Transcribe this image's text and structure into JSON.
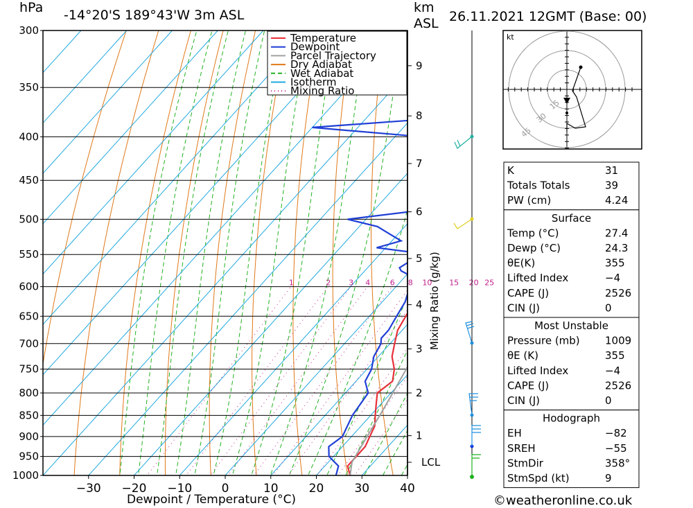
{
  "header": {
    "units_left": "hPa",
    "location": "-14°20'S  189°43'W  3m  ASL",
    "units_km": "km",
    "units_asl": "ASL",
    "datetime": "26.11.2021  12GMT  (Base: 00)"
  },
  "chart_data": {
    "type": "line",
    "subtype": "skew-T log-p sounding",
    "xlabel": "Dewpoint / Temperature (°C)",
    "ylabel": "hPa",
    "xlim": [
      -40,
      40
    ],
    "ylim": [
      1000,
      300
    ],
    "y_scale": "log",
    "x_ticks": [
      "−30",
      "−20",
      "−10",
      "0",
      "10",
      "20",
      "30",
      "40"
    ],
    "p_ticks": [
      1000,
      950,
      900,
      850,
      800,
      750,
      700,
      650,
      600,
      550,
      500,
      450,
      400,
      350,
      300
    ],
    "km_ticks": [
      {
        "p": 330,
        "label": "9"
      },
      {
        "p": 378,
        "label": "8"
      },
      {
        "p": 430,
        "label": "7"
      },
      {
        "p": 490,
        "label": "6"
      },
      {
        "p": 556,
        "label": "5"
      },
      {
        "p": 630,
        "label": "4"
      },
      {
        "p": 710,
        "label": "3"
      },
      {
        "p": 800,
        "label": "2"
      },
      {
        "p": 898,
        "label": "1"
      },
      {
        "p": 965,
        "label": "LCL"
      }
    ],
    "mixing_ratio_label": "Mixing Ratio (g/kg)",
    "mixing_ratio_values": [
      "1",
      "2",
      "3",
      "4",
      "6",
      "8",
      "10",
      "15",
      "20",
      "25"
    ],
    "legend": [
      "Temperature",
      "Dewpoint",
      "Parcel Trajectory",
      "Dry Adiabat",
      "Wet Adiabat",
      "Isotherm",
      "Mixing Ratio"
    ],
    "legend_position": "top-right",
    "colors": {
      "temperature": "#e8303a",
      "dewpoint": "#1f3fd6",
      "parcel": "#a0a0a0",
      "dry_adiabat": "#e07818",
      "wet_adiabat": "#20b020",
      "isotherm": "#20a8e0",
      "mixing_ratio": "#c0208c"
    },
    "series": [
      {
        "name": "Temperature",
        "points": [
          [
            1000,
            27.4
          ],
          [
            975,
            25
          ],
          [
            950,
            25
          ],
          [
            925,
            25
          ],
          [
            900,
            24
          ],
          [
            875,
            23
          ],
          [
            850,
            21
          ],
          [
            825,
            19
          ],
          [
            800,
            17
          ],
          [
            775,
            18
          ],
          [
            750,
            16
          ],
          [
            725,
            13
          ],
          [
            700,
            11
          ],
          [
            675,
            9
          ],
          [
            650,
            8
          ],
          [
            625,
            7
          ],
          [
            600,
            6
          ],
          [
            575,
            5
          ],
          [
            550,
            5
          ],
          [
            525,
            4
          ],
          [
            500,
            3
          ],
          [
            475,
            0
          ],
          [
            450,
            -2
          ],
          [
            425,
            -5
          ],
          [
            400,
            -8
          ],
          [
            375,
            -12
          ],
          [
            350,
            -15
          ],
          [
            325,
            -20
          ],
          [
            300,
            -26
          ]
        ]
      },
      {
        "name": "Dewpoint",
        "points": [
          [
            1000,
            24.3
          ],
          [
            975,
            23
          ],
          [
            950,
            19
          ],
          [
            925,
            17
          ],
          [
            900,
            18
          ],
          [
            875,
            17
          ],
          [
            850,
            16
          ],
          [
            800,
            15
          ],
          [
            775,
            12
          ],
          [
            750,
            11
          ],
          [
            725,
            9
          ],
          [
            700,
            8
          ],
          [
            690,
            7
          ],
          [
            675,
            7
          ],
          [
            650,
            6
          ],
          [
            625,
            5
          ],
          [
            600,
            3
          ],
          [
            580,
            0
          ],
          [
            575,
            -2
          ],
          [
            570,
            -3
          ],
          [
            560,
            -2
          ],
          [
            550,
            1
          ],
          [
            540,
            -12
          ],
          [
            530,
            -8
          ],
          [
            520,
            -12
          ],
          [
            510,
            -16
          ],
          [
            500,
            -24
          ],
          [
            490,
            -12
          ],
          [
            470,
            -12
          ],
          [
            460,
            -10
          ],
          [
            450,
            -10
          ],
          [
            440,
            -13
          ],
          [
            425,
            -16
          ],
          [
            400,
            -24
          ],
          [
            390,
            -50
          ],
          [
            380,
            -23
          ],
          [
            370,
            -28
          ],
          [
            360,
            -21
          ],
          [
            340,
            -22
          ],
          [
            320,
            -46
          ],
          [
            310,
            -20
          ],
          [
            300,
            -26
          ]
        ]
      },
      {
        "name": "Parcel Trajectory",
        "points": [
          [
            1000,
            27.4
          ],
          [
            965,
            25.2
          ],
          [
            900,
            23.4
          ],
          [
            850,
            22.0
          ],
          [
            800,
            20.4
          ],
          [
            700,
            16.7
          ],
          [
            600,
            11.8
          ],
          [
            500,
            5.2
          ],
          [
            450,
            1.0
          ],
          [
            400,
            -4.5
          ],
          [
            350,
            -11.5
          ],
          [
            300,
            -20.5
          ]
        ]
      }
    ]
  },
  "hodograph": {
    "units": "kt",
    "rings": [
      "15",
      "30",
      "45"
    ]
  },
  "indices": {
    "rows": [
      {
        "label": "K",
        "value": "31"
      },
      {
        "label": "Totals Totals",
        "value": "39"
      },
      {
        "label": "PW (cm)",
        "value": "4.24"
      }
    ]
  },
  "surface": {
    "title": "Surface",
    "rows": [
      {
        "label": "Temp (°C)",
        "value": "27.4"
      },
      {
        "label": "Dewp (°C)",
        "value": "24.3"
      },
      {
        "label": "θE(K)",
        "value": "355"
      },
      {
        "label": "Lifted Index",
        "value": "−4"
      },
      {
        "label": "CAPE (J)",
        "value": "2526"
      },
      {
        "label": "CIN (J)",
        "value": "0"
      }
    ]
  },
  "most_unstable": {
    "title": "Most Unstable",
    "rows": [
      {
        "label": "Pressure (mb)",
        "value": "1009"
      },
      {
        "label": "θE (K)",
        "value": "355"
      },
      {
        "label": "Lifted Index",
        "value": "−4"
      },
      {
        "label": "CAPE (J)",
        "value": "2526"
      },
      {
        "label": "CIN (J)",
        "value": "0"
      }
    ]
  },
  "hodograph_table": {
    "title": "Hodograph",
    "rows": [
      {
        "label": "EH",
        "value": "−82"
      },
      {
        "label": "SREH",
        "value": "−55"
      },
      {
        "label": "StmDir",
        "value": "358°"
      },
      {
        "label": "StmSpd (kt)",
        "value": "9"
      }
    ]
  },
  "footer": {
    "credit": "©weatheronline.co.uk"
  }
}
